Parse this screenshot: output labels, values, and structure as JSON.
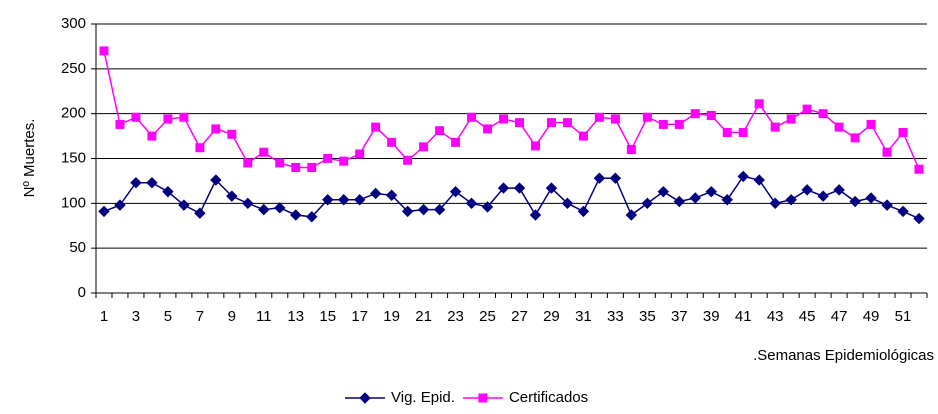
{
  "chart_data": {
    "type": "line",
    "y_label": "Nº Muertes.",
    "x_label": ".Semanas Epidemiológicas",
    "categories": [
      "1",
      null,
      "3",
      null,
      "5",
      null,
      "7",
      null,
      "9",
      null,
      "11",
      null,
      "13",
      null,
      "15",
      null,
      "17",
      null,
      "19",
      null,
      "21",
      null,
      "23",
      null,
      "25",
      null,
      "27",
      null,
      "29",
      null,
      "31",
      null,
      "33",
      null,
      "35",
      null,
      "37",
      null,
      "39",
      null,
      "41",
      null,
      "43",
      null,
      "45",
      null,
      "47",
      null,
      "49",
      null,
      "51",
      null
    ],
    "series": [
      {
        "name": "Vig. Epid.",
        "color": "#000080",
        "marker": "diamond",
        "values": [
          91,
          98,
          123,
          123,
          113,
          98,
          89,
          126,
          108,
          100,
          93,
          95,
          87,
          85,
          104,
          104,
          104,
          111,
          109,
          91,
          93,
          93,
          113,
          100,
          96,
          117,
          117,
          87,
          117,
          100,
          91,
          128,
          128,
          87,
          100,
          113,
          102,
          106,
          113,
          104,
          130,
          126,
          100,
          104,
          115,
          108,
          115,
          102,
          106,
          98,
          91,
          83
        ]
      },
      {
        "name": "Certificados",
        "color": "#ff00ff",
        "marker": "square",
        "values": [
          270,
          188,
          196,
          175,
          194,
          196,
          162,
          183,
          177,
          145,
          157,
          145,
          140,
          140,
          150,
          147,
          155,
          185,
          168,
          148,
          163,
          181,
          168,
          196,
          183,
          194,
          190,
          164,
          190,
          190,
          175,
          196,
          194,
          160,
          196,
          188,
          188,
          200,
          198,
          179,
          179,
          211,
          185,
          194,
          205,
          200,
          185,
          173,
          188,
          157,
          179,
          138
        ]
      }
    ],
    "ylim": [
      0,
      300
    ],
    "yticks": [
      0,
      50,
      100,
      150,
      200,
      250,
      300
    ],
    "grid": true,
    "legend": "bottom"
  }
}
